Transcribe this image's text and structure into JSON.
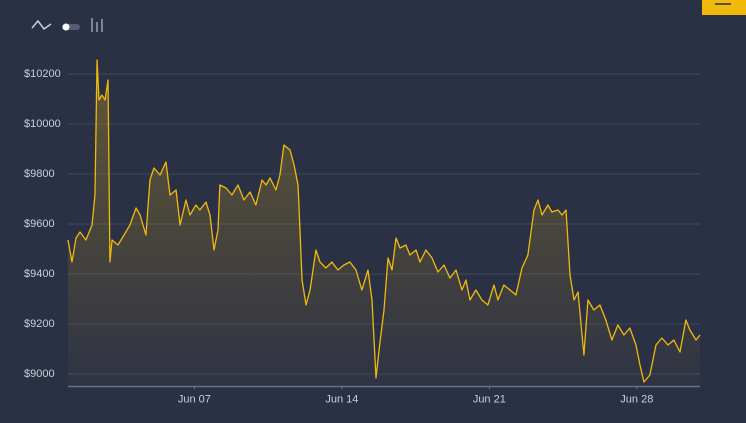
{
  "chart_data": {
    "type": "line",
    "x": [
      1.0,
      1.19,
      1.38,
      1.57,
      1.85,
      2.14,
      2.28,
      2.38,
      2.47,
      2.61,
      2.76,
      2.9,
      2.99,
      3.09,
      3.37,
      3.66,
      3.94,
      4.23,
      4.42,
      4.7,
      4.89,
      5.08,
      5.37,
      5.65,
      5.84,
      6.13,
      6.32,
      6.6,
      6.79,
      7.07,
      7.26,
      7.55,
      7.74,
      7.93,
      8.12,
      8.21,
      8.5,
      8.78,
      9.07,
      9.35,
      9.64,
      9.92,
      10.21,
      10.4,
      10.59,
      10.87,
      11.06,
      11.25,
      11.54,
      11.73,
      11.92,
      12.11,
      12.3,
      12.49,
      12.77,
      12.96,
      13.24,
      13.53,
      13.81,
      14.1,
      14.38,
      14.67,
      14.95,
      15.24,
      15.43,
      15.62,
      15.81,
      16.0,
      16.19,
      16.38,
      16.57,
      16.76,
      17.04,
      17.23,
      17.52,
      17.71,
      17.99,
      18.28,
      18.56,
      18.85,
      19.13,
      19.42,
      19.7,
      19.89,
      20.08,
      20.36,
      20.65,
      20.93,
      21.22,
      21.41,
      21.69,
      21.98,
      22.26,
      22.55,
      22.83,
      23.12,
      23.31,
      23.5,
      23.78,
      23.97,
      24.26,
      24.45,
      24.64,
      24.83,
      25.02,
      25.21,
      25.49,
      25.68,
      25.96,
      26.25,
      26.53,
      26.82,
      27.1,
      27.39,
      27.67,
      27.96,
      28.15,
      28.34,
      28.62,
      28.91,
      29.19,
      29.48,
      29.76,
      30.05,
      30.33,
      30.52,
      30.81,
      31.0
    ],
    "values": [
      9536,
      9448,
      9544,
      9568,
      9536,
      9596,
      9716,
      10256,
      10096,
      10116,
      10096,
      10176,
      9448,
      9536,
      9516,
      9556,
      9596,
      9664,
      9636,
      9556,
      9776,
      9824,
      9796,
      9848,
      9716,
      9736,
      9596,
      9696,
      9636,
      9676,
      9656,
      9688,
      9636,
      9496,
      9576,
      9756,
      9744,
      9716,
      9756,
      9696,
      9728,
      9676,
      9776,
      9756,
      9784,
      9736,
      9796,
      9916,
      9896,
      9836,
      9756,
      9376,
      9276,
      9336,
      9496,
      9448,
      9424,
      9448,
      9416,
      9436,
      9448,
      9416,
      9336,
      9416,
      9296,
      8984,
      9128,
      9256,
      9464,
      9416,
      9544,
      9504,
      9516,
      9476,
      9496,
      9448,
      9496,
      9464,
      9408,
      9436,
      9384,
      9416,
      9336,
      9376,
      9296,
      9336,
      9296,
      9276,
      9356,
      9296,
      9356,
      9336,
      9316,
      9424,
      9476,
      9656,
      9696,
      9636,
      9676,
      9648,
      9656,
      9636,
      9656,
      9396,
      9296,
      9328,
      9076,
      9296,
      9256,
      9276,
      9216,
      9136,
      9196,
      9156,
      9184,
      9116,
      9036,
      8968,
      8996,
      9116,
      9144,
      9116,
      9136,
      9088,
      9216,
      9176,
      9136,
      9156
    ],
    "color": "#f0b90b",
    "xlim": [
      1,
      31
    ],
    "xticks": [
      {
        "value": 7,
        "label": "Jun 07"
      },
      {
        "value": 14,
        "label": "Jun 14"
      },
      {
        "value": 21,
        "label": "Jun 21"
      },
      {
        "value": 28,
        "label": "Jun 28"
      }
    ],
    "ylim": [
      8950,
      10300
    ],
    "yticks": [
      {
        "value": 9000,
        "label": "$9000"
      },
      {
        "value": 9200,
        "label": "$9200"
      },
      {
        "value": 9400,
        "label": "$9400"
      },
      {
        "value": 9600,
        "label": "$9600"
      },
      {
        "value": 9800,
        "label": "$9800"
      },
      {
        "value": 10000,
        "label": "$10000"
      },
      {
        "value": 10200,
        "label": "$10200"
      }
    ],
    "grid": true
  }
}
